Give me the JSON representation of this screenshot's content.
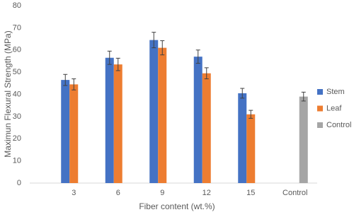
{
  "chart_data": {
    "type": "bar",
    "x_label": "Fiber content (wt.%)",
    "y_label": "Maximun Flexural Strength (MPa)",
    "categories": [
      "3",
      "6",
      "9",
      "12",
      "15",
      "Control"
    ],
    "series": [
      {
        "name": "Stem",
        "color": "#4472c4",
        "values": [
          46.5,
          56.5,
          64.5,
          57,
          40.5,
          null
        ],
        "errors": [
          2.5,
          3,
          3.5,
          3,
          2.2,
          null
        ]
      },
      {
        "name": "Leaf",
        "color": "#ed7d31",
        "values": [
          44.5,
          53.5,
          61,
          49.5,
          31,
          null
        ],
        "errors": [
          2.5,
          2.8,
          3.2,
          2.5,
          1.8,
          null
        ]
      },
      {
        "name": "Control",
        "color": "#a5a5a5",
        "values": [
          null,
          null,
          null,
          null,
          null,
          39
        ],
        "errors": [
          null,
          null,
          null,
          null,
          null,
          2
        ]
      }
    ],
    "ylim": [
      0,
      80
    ],
    "yticks": [
      0,
      10,
      20,
      30,
      40,
      50,
      60,
      70,
      80
    ],
    "grid": false,
    "legend": "right"
  }
}
